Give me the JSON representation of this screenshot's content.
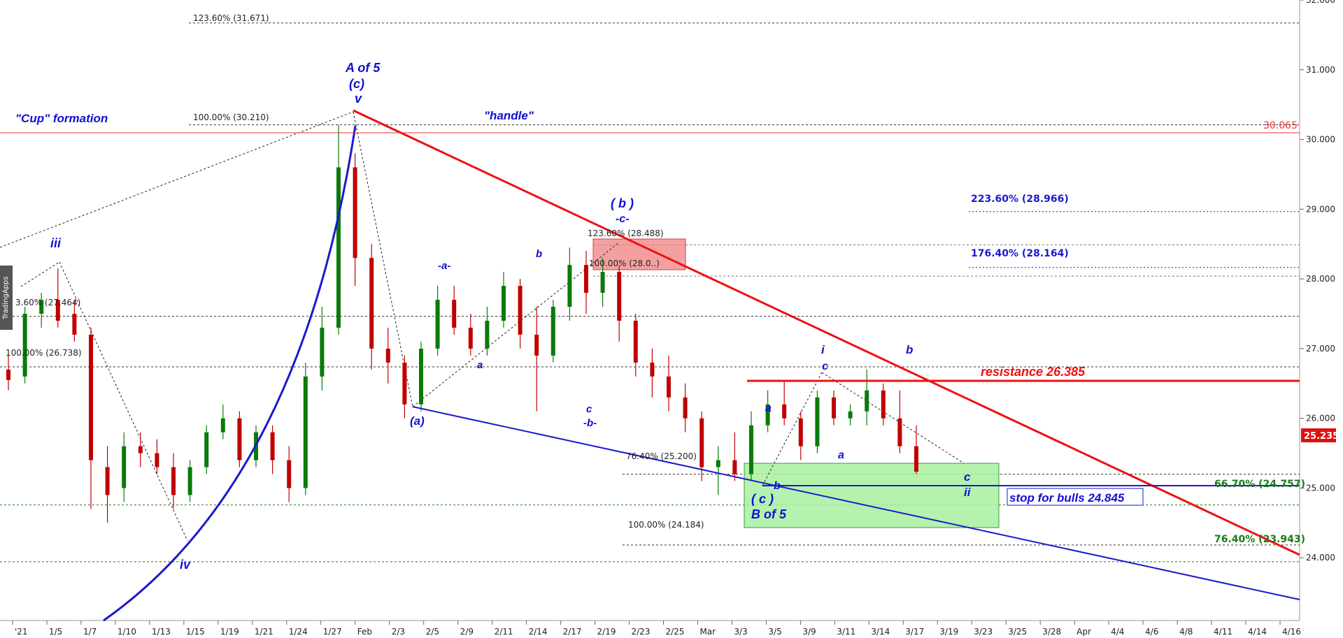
{
  "watermark": "TradingApps",
  "colors": {
    "bull": "#0a7a0a",
    "bear": "#c00000",
    "wave_blue": "#1010d0",
    "trend_red": "#ee1111",
    "fib_green": "#1a7a1a"
  },
  "chart_data": {
    "type": "candlestick",
    "ylim": [
      23.1,
      32.0
    ],
    "y_ticks": [
      "24.000",
      "25.000",
      "26.000",
      "27.000",
      "28.000",
      "29.000",
      "30.000",
      "31.000",
      "32.000"
    ],
    "x_ticks": [
      "'21",
      "1/5",
      "1/7",
      "1/10",
      "1/13",
      "1/15",
      "1/19",
      "1/21",
      "1/24",
      "1/27",
      "Feb",
      "2/3",
      "2/5",
      "2/9",
      "2/11",
      "2/14",
      "2/17",
      "2/19",
      "2/23",
      "2/25",
      "Mar",
      "3/3",
      "3/5",
      "3/9",
      "3/11",
      "3/14",
      "3/17",
      "3/19",
      "3/23",
      "3/25",
      "3/28",
      "Apr",
      "4/4",
      "4/6",
      "4/8",
      "4/11",
      "4/14",
      "4/16"
    ],
    "last_price": "25.235",
    "price_line": "30.065",
    "horizontal_levels": [
      {
        "text": "123.60% (31.671)",
        "value": 31.671
      },
      {
        "text": "100.00% (30.210)",
        "value": 30.21
      },
      {
        "text": "223.60% (28.966)",
        "value": 28.966
      },
      {
        "text": "123.60% (28.488)",
        "value": 28.488
      },
      {
        "text": "176.40% (28.164)",
        "value": 28.164
      },
      {
        "text": "100.00% (28.0..)",
        "value": 28.04
      },
      {
        "text": "3.60% (27.464)",
        "value": 27.464
      },
      {
        "text": "100.00% (26.738)",
        "value": 26.738
      },
      {
        "text": "76.40% (25.200)",
        "value": 25.2
      },
      {
        "text": "66.70% (24.757)",
        "value": 24.757
      },
      {
        "text": "100.00% (24.184)",
        "value": 24.184
      },
      {
        "text": "76.40% (23.943)",
        "value": 23.943
      }
    ],
    "annotations": {
      "cup": "\"Cup\" formation",
      "handle": "\"handle\"",
      "a_of_5": "A of 5",
      "c_paren": "(c)",
      "v": "v",
      "iii": "iii",
      "iv": "iv",
      "a_paren": "(a)",
      "b_paren": "( b )",
      "c_dash": "-c-",
      "a_dash": "-a-",
      "b_dash": "-b-",
      "small_a": "a",
      "small_b": "b",
      "small_c": "c",
      "c_paren2": "( c )",
      "b_of_5": "B of 5",
      "i": "i",
      "ii": "ii",
      "resistance": "resistance 26.385",
      "stop": "stop for bulls 24.845"
    },
    "series": [
      {
        "name": "",
        "values": [
          {
            "x": "12/31",
            "o": 26.7,
            "h": 26.9,
            "l": 26.4,
            "c": 26.55
          },
          {
            "x": "1/4",
            "o": 26.6,
            "h": 27.6,
            "l": 26.5,
            "c": 27.5
          },
          {
            "x": "1/5",
            "o": 27.5,
            "h": 27.8,
            "l": 27.3,
            "c": 27.7
          },
          {
            "x": "1/6",
            "o": 27.7,
            "h": 28.15,
            "l": 27.3,
            "c": 27.4
          },
          {
            "x": "1/7",
            "o": 27.5,
            "h": 27.7,
            "l": 27.1,
            "c": 27.2
          },
          {
            "x": "1/8",
            "o": 27.2,
            "h": 27.3,
            "l": 24.7,
            "c": 25.4
          },
          {
            "x": "1/11",
            "o": 25.3,
            "h": 25.6,
            "l": 24.5,
            "c": 24.9
          },
          {
            "x": "1/12",
            "o": 25.0,
            "h": 25.8,
            "l": 24.8,
            "c": 25.6
          },
          {
            "x": "1/13",
            "o": 25.6,
            "h": 25.8,
            "l": 25.3,
            "c": 25.5
          },
          {
            "x": "1/14",
            "o": 25.5,
            "h": 25.7,
            "l": 25.2,
            "c": 25.3
          },
          {
            "x": "1/15",
            "o": 25.3,
            "h": 25.5,
            "l": 24.7,
            "c": 24.9
          },
          {
            "x": "1/19",
            "o": 24.9,
            "h": 25.4,
            "l": 24.8,
            "c": 25.3
          },
          {
            "x": "1/20",
            "o": 25.3,
            "h": 25.9,
            "l": 25.2,
            "c": 25.8
          },
          {
            "x": "1/21",
            "o": 25.8,
            "h": 26.2,
            "l": 25.7,
            "c": 26.0
          },
          {
            "x": "1/22",
            "o": 26.0,
            "h": 26.1,
            "l": 25.3,
            "c": 25.4
          },
          {
            "x": "1/25",
            "o": 25.4,
            "h": 25.9,
            "l": 25.3,
            "c": 25.8
          },
          {
            "x": "1/26",
            "o": 25.8,
            "h": 25.9,
            "l": 25.2,
            "c": 25.4
          },
          {
            "x": "1/27",
            "o": 25.4,
            "h": 25.6,
            "l": 24.8,
            "c": 25.0
          },
          {
            "x": "1/28",
            "o": 25.0,
            "h": 26.8,
            "l": 24.9,
            "c": 26.6
          },
          {
            "x": "1/29",
            "o": 26.6,
            "h": 27.6,
            "l": 26.4,
            "c": 27.3
          },
          {
            "x": "2/1",
            "o": 27.3,
            "h": 30.21,
            "l": 27.2,
            "c": 29.6
          },
          {
            "x": "2/2",
            "o": 29.6,
            "h": 29.8,
            "l": 27.9,
            "c": 28.3
          },
          {
            "x": "2/3",
            "o": 28.3,
            "h": 28.5,
            "l": 26.7,
            "c": 27.0
          },
          {
            "x": "2/4",
            "o": 27.0,
            "h": 27.3,
            "l": 26.5,
            "c": 26.8
          },
          {
            "x": "2/5",
            "o": 26.8,
            "h": 26.9,
            "l": 26.0,
            "c": 26.2
          },
          {
            "x": "2/8",
            "o": 26.2,
            "h": 27.1,
            "l": 26.1,
            "c": 27.0
          },
          {
            "x": "2/9",
            "o": 27.0,
            "h": 27.9,
            "l": 26.9,
            "c": 27.7
          },
          {
            "x": "2/10",
            "o": 27.7,
            "h": 27.9,
            "l": 27.2,
            "c": 27.3
          },
          {
            "x": "2/11",
            "o": 27.3,
            "h": 27.5,
            "l": 26.9,
            "c": 27.0
          },
          {
            "x": "2/12",
            "o": 27.0,
            "h": 27.6,
            "l": 26.9,
            "c": 27.4
          },
          {
            "x": "2/16",
            "o": 27.4,
            "h": 28.1,
            "l": 27.3,
            "c": 27.9
          },
          {
            "x": "2/17",
            "o": 27.9,
            "h": 28.0,
            "l": 27.0,
            "c": 27.2
          },
          {
            "x": "2/18",
            "o": 27.2,
            "h": 27.6,
            "l": 26.1,
            "c": 26.9
          },
          {
            "x": "2/19",
            "o": 26.9,
            "h": 27.7,
            "l": 26.8,
            "c": 27.6
          },
          {
            "x": "2/22",
            "o": 27.6,
            "h": 28.45,
            "l": 27.4,
            "c": 28.2
          },
          {
            "x": "2/23",
            "o": 28.2,
            "h": 28.4,
            "l": 27.5,
            "c": 27.8
          },
          {
            "x": "2/24",
            "o": 27.8,
            "h": 28.3,
            "l": 27.6,
            "c": 28.1
          },
          {
            "x": "2/25",
            "o": 28.1,
            "h": 28.2,
            "l": 27.1,
            "c": 27.4
          },
          {
            "x": "2/26",
            "o": 27.4,
            "h": 27.5,
            "l": 26.6,
            "c": 26.8
          },
          {
            "x": "3/1",
            "o": 26.8,
            "h": 27.0,
            "l": 26.3,
            "c": 26.6
          },
          {
            "x": "3/2",
            "o": 26.6,
            "h": 26.9,
            "l": 26.1,
            "c": 26.3
          },
          {
            "x": "3/3",
            "o": 26.3,
            "h": 26.5,
            "l": 25.8,
            "c": 26.0
          },
          {
            "x": "3/4",
            "o": 26.0,
            "h": 26.1,
            "l": 25.1,
            "c": 25.3
          },
          {
            "x": "3/5",
            "o": 25.3,
            "h": 25.6,
            "l": 24.9,
            "c": 25.4
          },
          {
            "x": "3/8",
            "o": 25.4,
            "h": 25.8,
            "l": 25.1,
            "c": 25.2
          },
          {
            "x": "3/9",
            "o": 25.2,
            "h": 26.1,
            "l": 25.1,
            "c": 25.9
          },
          {
            "x": "3/10",
            "o": 25.9,
            "h": 26.4,
            "l": 25.8,
            "c": 26.2
          },
          {
            "x": "3/11",
            "o": 26.2,
            "h": 26.55,
            "l": 25.9,
            "c": 26.0
          },
          {
            "x": "3/12",
            "o": 26.0,
            "h": 26.1,
            "l": 25.4,
            "c": 25.6
          },
          {
            "x": "3/15",
            "o": 25.6,
            "h": 26.4,
            "l": 25.5,
            "c": 26.3
          },
          {
            "x": "3/16",
            "o": 26.3,
            "h": 26.4,
            "l": 25.9,
            "c": 26.0
          },
          {
            "x": "3/17",
            "o": 26.0,
            "h": 26.2,
            "l": 25.9,
            "c": 26.1
          },
          {
            "x": "3/18",
            "o": 26.1,
            "h": 26.7,
            "l": 25.9,
            "c": 26.4
          },
          {
            "x": "3/19",
            "o": 26.4,
            "h": 26.5,
            "l": 25.9,
            "c": 26.0
          },
          {
            "x": "3/22",
            "o": 26.0,
            "h": 26.4,
            "l": 25.5,
            "c": 25.6
          },
          {
            "x": "3/23",
            "o": 25.6,
            "h": 25.9,
            "l": 25.2,
            "c": 25.235
          }
        ]
      }
    ]
  }
}
